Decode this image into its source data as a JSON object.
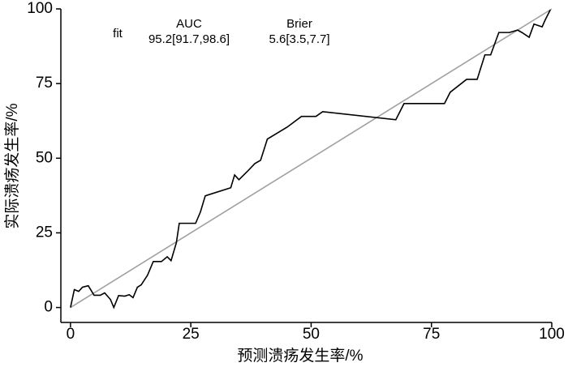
{
  "chart_data": {
    "type": "line",
    "xlabel": "预测溃疡发生率/%",
    "ylabel": "实际溃疡发生率/%",
    "annotations": [
      "fit",
      "AUC",
      "95.2[91.7,98.6]",
      "Brier",
      "5.6[3.5,7.7]"
    ],
    "xlim": [
      -2,
      100
    ],
    "ylim": [
      -5,
      100
    ],
    "xticks": [
      0,
      25,
      50,
      75,
      100
    ],
    "yticks": [
      0,
      25,
      50,
      75,
      100
    ],
    "series": [
      {
        "color": "#000000",
        "x": [
          0,
          0.8,
          1.7,
          2.5,
          3.7,
          4.9,
          6.2,
          7.1,
          8.3,
          9,
          10,
          11.3,
          12.2,
          13,
          13.9,
          14.7,
          16,
          17.2,
          18.9,
          20.1,
          20.9,
          22,
          22.6,
          26,
          27,
          28,
          33.3,
          34.1,
          35,
          36.7,
          38.3,
          39.5,
          40.9,
          45,
          48,
          51,
          52.4,
          67.6,
          69.3,
          77.7,
          78.9,
          82.3,
          84.5,
          86.1,
          87.3,
          89,
          91.2,
          92.9,
          93.8,
          95.3,
          96.3,
          98,
          98.6,
          99.7
        ],
        "values": [
          0,
          6,
          5.4,
          6.8,
          7.3,
          4.1,
          4.1,
          4.9,
          2.7,
          0,
          4,
          3.8,
          4.3,
          3.3,
          6.8,
          7.6,
          10.8,
          15.4,
          15.4,
          17,
          15.7,
          21.7,
          28.2,
          28.2,
          32,
          37.4,
          40.1,
          44.4,
          42.8,
          45.5,
          48.2,
          49.3,
          56.4,
          60.4,
          64,
          64,
          65.6,
          62.9,
          68.3,
          68.3,
          72.1,
          76.4,
          76.4,
          84.6,
          84.6,
          92.1,
          92.1,
          92.9,
          92.1,
          90.5,
          94.9,
          94,
          96.2,
          99.7
        ]
      },
      {
        "color": "#a0a0a0",
        "x": [
          0,
          100
        ],
        "values": [
          0,
          100
        ]
      }
    ]
  }
}
